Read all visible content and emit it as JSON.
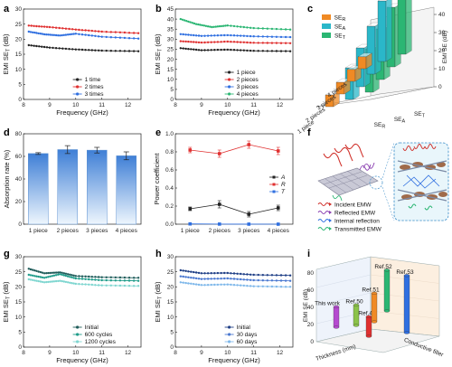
{
  "panels": [
    "a",
    "b",
    "c",
    "d",
    "e",
    "f",
    "g",
    "h",
    "i"
  ],
  "colors": {
    "black": "#222222",
    "red": "#e03030",
    "blue": "#2f6fe0",
    "green": "#2bb673",
    "teal": "#1a7f7a",
    "cyan": "#2ab7c9",
    "lightcyan": "#7fd6d0",
    "darkblue": "#1f3f86",
    "midblue": "#4a78d0",
    "lightblue": "#7fb8ea",
    "orange": "#f08a24"
  },
  "chart_data": [
    {
      "panel": "a",
      "type": "line",
      "xlabel": "Frequency (GHz)",
      "ylabel": "EMI SE",
      "ylabel_sub": "T",
      "ylabel_unit": " (dB)",
      "xlim": [
        8.2,
        12.4
      ],
      "ylim": [
        0,
        30
      ],
      "xticks": [
        8,
        9,
        10,
        11,
        12
      ],
      "yticks": [
        0,
        5,
        10,
        15,
        20,
        25,
        30
      ],
      "legend": "bottom-right",
      "series": [
        {
          "name": "1 time",
          "color": "#222222",
          "x": [
            8.2,
            9.0,
            10.0,
            11.0,
            12.4
          ],
          "y": [
            18,
            17.2,
            16.6,
            16.2,
            16
          ]
        },
        {
          "name": "2 times",
          "color": "#e03030",
          "x": [
            8.2,
            9.0,
            10.0,
            11.0,
            12.4
          ],
          "y": [
            24.5,
            24,
            23.2,
            22.5,
            22
          ]
        },
        {
          "name": "3 times",
          "color": "#2f6fe0",
          "x": [
            8.2,
            8.8,
            9.4,
            10.0,
            11.0,
            12.4
          ],
          "y": [
            22.5,
            21.6,
            21.2,
            21.8,
            20.8,
            20.2
          ]
        }
      ]
    },
    {
      "panel": "b",
      "type": "line",
      "xlabel": "Frequency (GHz)",
      "ylabel": "EMI SE",
      "ylabel_sub": "T",
      "ylabel_unit": " (dB)",
      "xlim": [
        8.2,
        12.4
      ],
      "ylim": [
        0,
        45
      ],
      "xticks": [
        8,
        9,
        10,
        11,
        12
      ],
      "yticks": [
        0,
        5,
        10,
        15,
        20,
        25,
        30,
        35,
        40,
        45
      ],
      "legend": "bottom-right",
      "series": [
        {
          "name": "1 piece",
          "color": "#222222",
          "x": [
            8.2,
            9.0,
            10.0,
            11.0,
            12.4
          ],
          "y": [
            25.5,
            24.5,
            24.8,
            24.2,
            24
          ]
        },
        {
          "name": "2 pieces",
          "color": "#e03030",
          "x": [
            8.2,
            9.0,
            10.0,
            11.0,
            12.4
          ],
          "y": [
            29,
            28.3,
            28.8,
            28.2,
            28
          ]
        },
        {
          "name": "3 pieces",
          "color": "#2f6fe0",
          "x": [
            8.2,
            9.0,
            10.0,
            11.0,
            12.4
          ],
          "y": [
            32.5,
            31.6,
            32,
            31.4,
            31
          ]
        },
        {
          "name": "4 pieces",
          "color": "#2bb673",
          "x": [
            8.2,
            8.8,
            9.4,
            10.0,
            11.0,
            12.4
          ],
          "y": [
            40,
            37.5,
            36,
            36.8,
            35.5,
            34.8
          ]
        }
      ]
    },
    {
      "panel": "c",
      "type": "bar3d",
      "zlabel": "EMI SE (dB)",
      "zlim": [
        0,
        40
      ],
      "zticks": [
        0,
        10,
        20,
        30,
        40
      ],
      "rows": [
        "1 piece",
        "2 pieces",
        "3 pieces",
        "4 pieces"
      ],
      "columns": [
        "SE",
        "SE",
        "SE"
      ],
      "column_subs": [
        "R",
        "A",
        "T"
      ],
      "legend": "top-left",
      "series": [
        {
          "name": "SE",
          "sub": "R",
          "color": "#f08a24",
          "values": [
            6.5,
            6.5,
            6.6,
            6.6
          ]
        },
        {
          "name": "SE",
          "sub": "A",
          "color": "#2ab7c9",
          "values": [
            17.5,
            21.5,
            26.5,
            33.5
          ]
        },
        {
          "name": "SE",
          "sub": "T",
          "color": "#2bb673",
          "values": [
            24,
            28,
            33,
            40
          ]
        }
      ]
    },
    {
      "panel": "d",
      "type": "bar",
      "xlabel": "",
      "ylabel": "Absorption rate (%)",
      "ylim": [
        0,
        80
      ],
      "yticks": [
        0,
        20,
        40,
        60,
        80
      ],
      "categories": [
        "1 piece",
        "2 pieces",
        "3 pieces",
        "4 pieces"
      ],
      "values": [
        62.5,
        66,
        65.5,
        60.5
      ],
      "errors": [
        0.8,
        3.5,
        2.5,
        3.5
      ]
    },
    {
      "panel": "e",
      "type": "line",
      "xlabel": "",
      "ylabel": "Power coefficient",
      "ylim": [
        0,
        1.0
      ],
      "yticks": [
        0.0,
        0.2,
        0.4,
        0.6,
        0.8,
        1.0
      ],
      "categories": [
        "1 piece",
        "2 pieces",
        "3 pieces",
        "4 pieces"
      ],
      "legend": "right",
      "series": [
        {
          "name": "A",
          "color": "#222222",
          "values": [
            0.17,
            0.22,
            0.11,
            0.18
          ],
          "errors": [
            0.02,
            0.04,
            0.03,
            0.03
          ]
        },
        {
          "name": "R",
          "color": "#e03030",
          "values": [
            0.82,
            0.78,
            0.88,
            0.81
          ],
          "errors": [
            0.03,
            0.04,
            0.04,
            0.04
          ]
        },
        {
          "name": "T",
          "color": "#2f6fe0",
          "values": [
            0.003,
            0.001,
            0.0005,
            0.0002
          ],
          "errors": [
            0,
            0,
            0,
            0
          ]
        }
      ]
    },
    {
      "panel": "g",
      "type": "line",
      "xlabel": "Frequency (GHz)",
      "ylabel": "EMI SE",
      "ylabel_sub": "T",
      "ylabel_unit": " (dB)",
      "xlim": [
        8.2,
        12.4
      ],
      "ylim": [
        0,
        30
      ],
      "xticks": [
        8,
        9,
        10,
        11,
        12
      ],
      "yticks": [
        0,
        5,
        10,
        15,
        20,
        25,
        30
      ],
      "legend": "bottom-right",
      "series": [
        {
          "name": "Initial",
          "color": "#1f5c5a",
          "x": [
            8.2,
            8.8,
            9.4,
            10.0,
            11.0,
            12.4
          ],
          "y": [
            26,
            24.5,
            24.8,
            23.6,
            23.2,
            23
          ]
        },
        {
          "name": "600 cycles",
          "color": "#1f9c8a",
          "x": [
            8.2,
            8.8,
            9.4,
            10.0,
            11.0,
            12.4
          ],
          "y": [
            24,
            23,
            24.2,
            22.8,
            22.2,
            22
          ]
        },
        {
          "name": "1200 cycles",
          "color": "#7fd6d0",
          "x": [
            8.2,
            8.8,
            9.4,
            10.0,
            11.0,
            12.4
          ],
          "y": [
            22.5,
            21.5,
            22,
            21,
            20.5,
            20.3
          ]
        }
      ]
    },
    {
      "panel": "h",
      "type": "line",
      "xlabel": "Frequency (GHz)",
      "ylabel": "EMI SE",
      "ylabel_sub": "T",
      "ylabel_unit": " (dB)",
      "xlim": [
        8.2,
        12.4
      ],
      "ylim": [
        0,
        30
      ],
      "xticks": [
        8,
        9,
        10,
        11,
        12
      ],
      "yticks": [
        0,
        5,
        10,
        15,
        20,
        25,
        30
      ],
      "legend": "bottom-right",
      "series": [
        {
          "name": "Initial",
          "color": "#1f3f86",
          "x": [
            8.2,
            9.0,
            10.0,
            11.0,
            12.4
          ],
          "y": [
            25.5,
            24.5,
            24.6,
            24,
            23.8
          ]
        },
        {
          "name": "30 days",
          "color": "#4a78d0",
          "x": [
            8.2,
            9.0,
            10.0,
            11.0,
            12.4
          ],
          "y": [
            23.5,
            22.6,
            22.8,
            22.2,
            22
          ]
        },
        {
          "name": "60 days",
          "color": "#7fb8ea",
          "x": [
            8.2,
            9.0,
            10.0,
            11.0,
            12.4
          ],
          "y": [
            21.5,
            20.6,
            20.8,
            20.2,
            20
          ]
        }
      ]
    },
    {
      "panel": "i",
      "type": "bar3d",
      "zlabel": "EMI SE (dB)",
      "zlim": [
        0,
        80
      ],
      "zticks": [
        0,
        20,
        40,
        60,
        80
      ],
      "xaxis_label": "Thickness (mm)",
      "yaxis_label": "Conductive filler",
      "entries": [
        {
          "name": "This work",
          "color": "#b54ad0",
          "value": 25
        },
        {
          "name": "Ref.50",
          "color": "#8bc34a",
          "value": 25
        },
        {
          "name": "Ref.48",
          "color": "#e03030",
          "value": 24
        },
        {
          "name": "Ref.51",
          "color": "#f08a24",
          "value": 35
        },
        {
          "name": "Ref.52",
          "color": "#2bb673",
          "value": 50
        },
        {
          "name": "Ref.53",
          "color": "#2f6fe0",
          "value": 70
        }
      ]
    }
  ],
  "panel_f": {
    "legend": [
      {
        "name": "Incident EMW",
        "color": "#d0302a"
      },
      {
        "name": "Reflected EMW",
        "color": "#8a3fb0"
      },
      {
        "name": "Internal reflection",
        "color": "#2f6fe0"
      },
      {
        "name": "Transmitted EMW",
        "color": "#2bb673"
      }
    ]
  }
}
